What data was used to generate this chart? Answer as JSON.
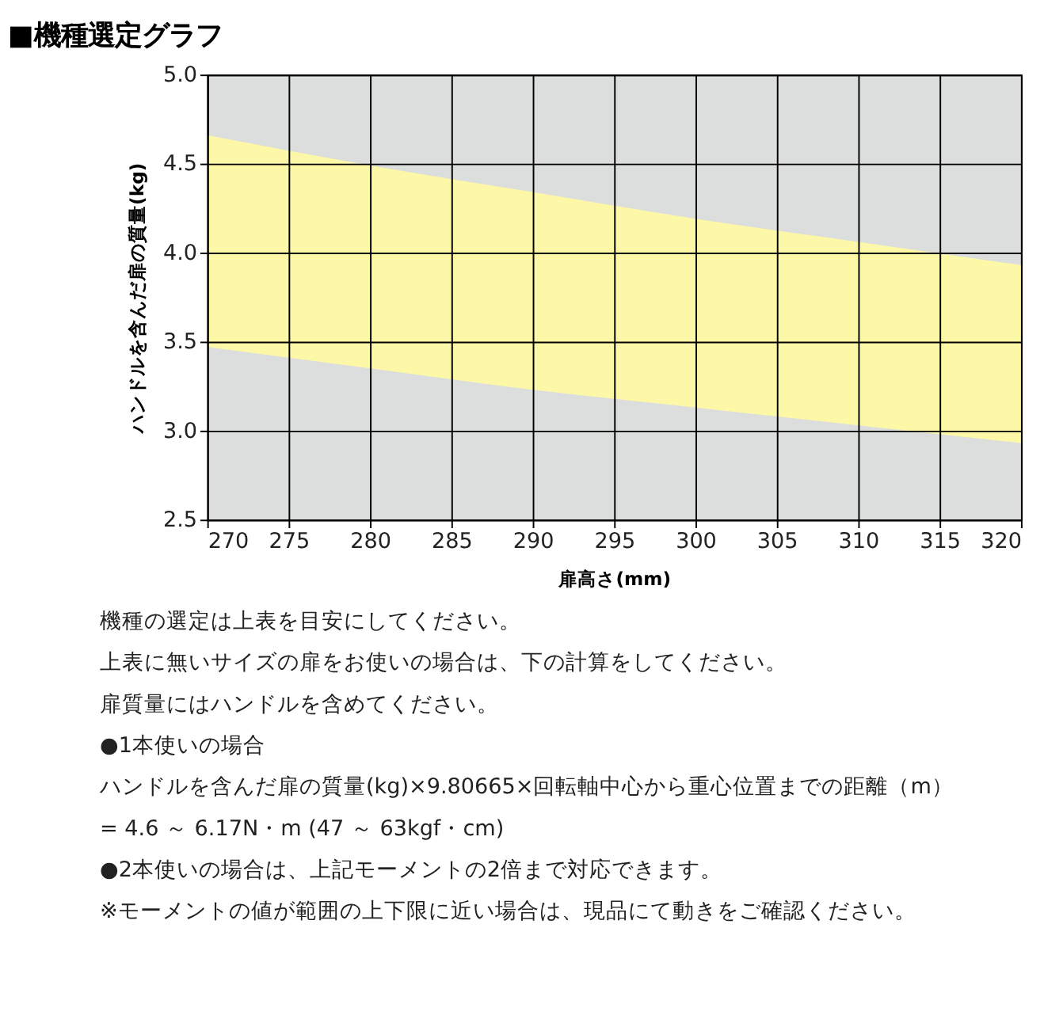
{
  "chart_data": {
    "type": "area",
    "title": "■機種選定グラフ",
    "xlabel": "扉高さ(mm)",
    "ylabel": "ハンドルを含んだ扉の質量(kg)",
    "x": [
      270,
      280,
      290,
      300,
      310,
      320
    ],
    "series": [
      {
        "color": "#fdf7a8",
        "values": [
          4.66,
          4.49,
          4.34,
          4.19,
          4.06,
          3.93
        ]
      },
      {
        "color": "#dcdddd",
        "values": [
          3.47,
          3.35,
          3.23,
          3.13,
          3.03,
          2.93
        ]
      }
    ],
    "xlim": [
      270,
      320
    ],
    "xticks": [
      270,
      275,
      280,
      285,
      290,
      295,
      300,
      305,
      310,
      315,
      320
    ],
    "ylim": [
      2.5,
      5.0
    ],
    "yticks": [
      2.5,
      {
        "value": 3.0,
        "label": "3.0"
      },
      3.5,
      {
        "value": 4.0,
        "label": "4.0"
      },
      4.5,
      {
        "value": 5.0,
        "label": "5.0"
      }
    ],
    "grid": true,
    "annotations": [
      "機種の選定は上表を目安にしてください。",
      "上表に無いサイズの扉をお使いの場合は、下の計算をしてください。",
      "扉質量にはハンドルを含めてください。",
      "●1本使いの場合",
      "ハンドルを含んだ扉の質量(kg)×9.80665×回転軸中心から重心位置までの距離（m）",
      "= 4.6 ～ 6.17N・m (47 ～ 63kgf・cm)",
      "●2本使いの場合は、上記モーメントの2倍まで対応できます。",
      "※モーメントの値が範囲の上下限に近い場合は、現品にて動きをご確認ください。"
    ]
  }
}
